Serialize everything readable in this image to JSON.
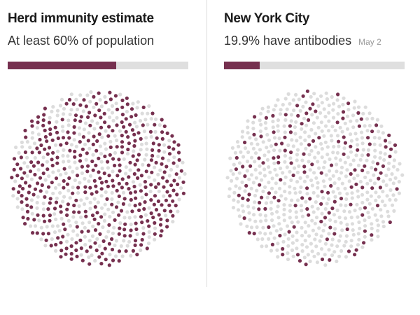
{
  "colors": {
    "filled": "#76304f",
    "empty": "#dcdcdc",
    "bar_track": "#dfdfdf"
  },
  "chart_data": [
    {
      "type": "dot-matrix",
      "title": "Herd immunity estimate",
      "subtitle": "At least 60% of population",
      "percent": 60
    },
    {
      "type": "dot-matrix",
      "title": "New York City",
      "subtitle": "19.9% have antibodies",
      "date": "May 2",
      "percent": 19.9
    }
  ]
}
